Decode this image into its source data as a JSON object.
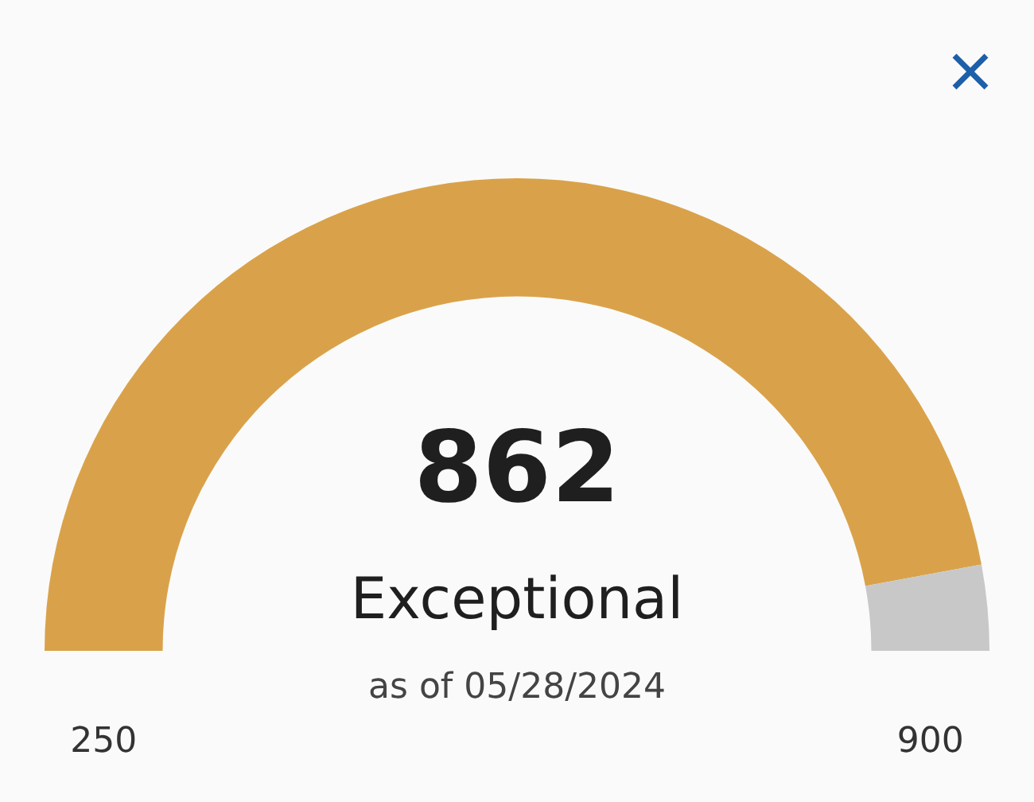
{
  "chart_data": {
    "type": "donut",
    "categories": [
      null,
      null
    ],
    "values": [
      94.15,
      5.85
    ],
    "colors": [
      "#d9a24a",
      "#c8c8c8"
    ],
    "annotations": [
      "862",
      "Exceptional",
      "as of 05/28/2024",
      "250",
      "900"
    ]
  }
}
